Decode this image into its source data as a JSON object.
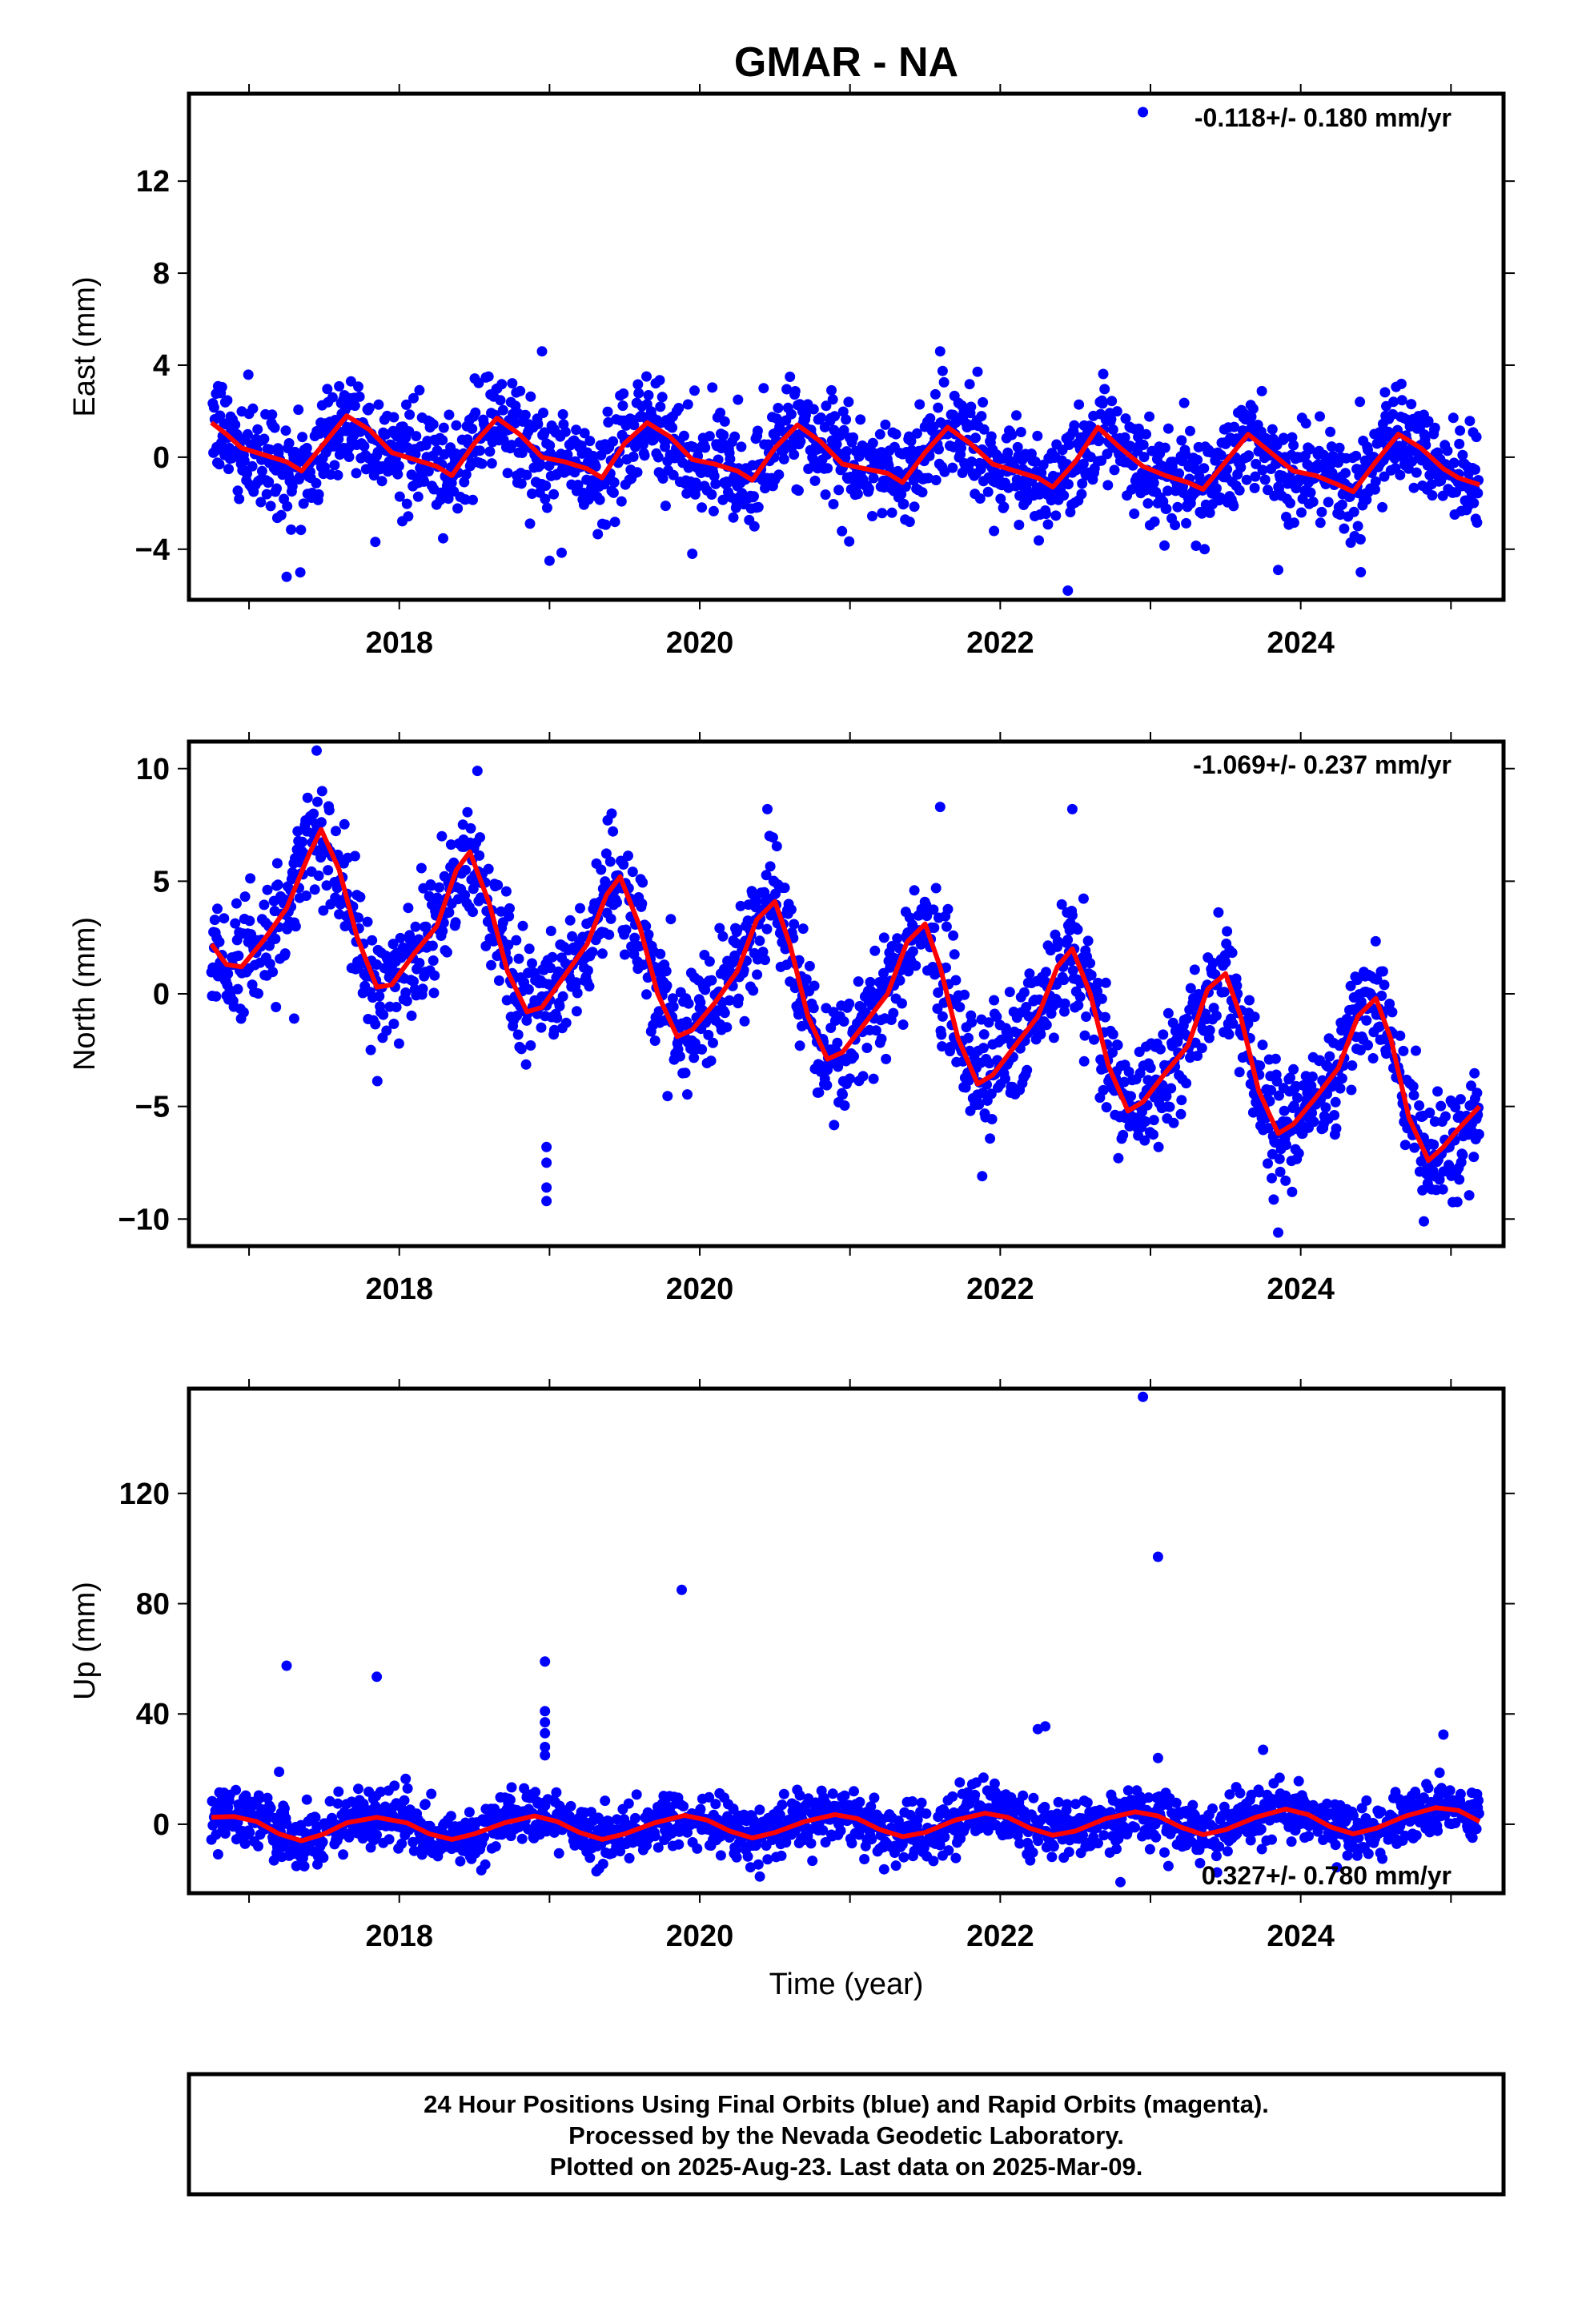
{
  "title": "GMAR - NA",
  "colors": {
    "points": "#0000ff",
    "fit": "#ff0000",
    "frame": "#000000"
  },
  "x_axis_label": "Time (year)",
  "footer": {
    "lines": [
      "24 Hour Positions Using Final Orbits (blue) and Rapid Orbits (magenta).",
      "Processed by the Nevada Geodetic Laboratory.",
      "Plotted on 2025-Aug-23. Last data on 2025-Mar-09."
    ]
  },
  "chart_data": [
    {
      "type": "scatter",
      "ylabel": "East (mm)",
      "rate_text": "-0.118+/- 0.180 mm/yr",
      "xlim": [
        2016.6,
        2025.35
      ],
      "ylim": [
        -6.2,
        15.8
      ],
      "xticks": [
        2018,
        2020,
        2022,
        2024
      ],
      "yticks": [
        -4,
        0,
        4,
        8,
        12
      ],
      "ytick_labels": [
        "−4",
        "0",
        "4",
        "8",
        "12"
      ],
      "series_model": {
        "start": 2016.75,
        "end": 2025.19,
        "trend": -0.118,
        "amp": 1.2,
        "phase": 2017.3,
        "noise": 1.1,
        "offset": 0.0
      },
      "fit_line": [
        [
          2016.75,
          1.5
        ],
        [
          2016.85,
          1.0
        ],
        [
          2016.95,
          0.4
        ],
        [
          2017.1,
          0.1
        ],
        [
          2017.25,
          -0.2
        ],
        [
          2017.35,
          -0.6
        ],
        [
          2017.5,
          0.6
        ],
        [
          2017.65,
          1.8
        ],
        [
          2017.8,
          1.2
        ],
        [
          2017.95,
          0.2
        ],
        [
          2018.1,
          -0.1
        ],
        [
          2018.25,
          -0.4
        ],
        [
          2018.35,
          -0.8
        ],
        [
          2018.5,
          0.6
        ],
        [
          2018.65,
          1.7
        ],
        [
          2018.8,
          1.0
        ],
        [
          2018.95,
          0.0
        ],
        [
          2019.1,
          -0.2
        ],
        [
          2019.25,
          -0.5
        ],
        [
          2019.35,
          -0.9
        ],
        [
          2019.5,
          0.6
        ],
        [
          2019.65,
          1.5
        ],
        [
          2019.8,
          0.9
        ],
        [
          2019.95,
          -0.1
        ],
        [
          2020.1,
          -0.3
        ],
        [
          2020.25,
          -0.6
        ],
        [
          2020.35,
          -1.0
        ],
        [
          2020.5,
          0.4
        ],
        [
          2020.65,
          1.4
        ],
        [
          2020.8,
          0.7
        ],
        [
          2020.95,
          -0.3
        ],
        [
          2021.1,
          -0.5
        ],
        [
          2021.25,
          -0.7
        ],
        [
          2021.35,
          -1.1
        ],
        [
          2021.5,
          0.2
        ],
        [
          2021.65,
          1.3
        ],
        [
          2021.8,
          0.6
        ],
        [
          2021.95,
          -0.3
        ],
        [
          2022.1,
          -0.6
        ],
        [
          2022.25,
          -0.9
        ],
        [
          2022.35,
          -1.3
        ],
        [
          2022.5,
          -0.2
        ],
        [
          2022.65,
          1.3
        ],
        [
          2022.8,
          0.4
        ],
        [
          2022.95,
          -0.4
        ],
        [
          2023.1,
          -0.8
        ],
        [
          2023.25,
          -1.1
        ],
        [
          2023.35,
          -1.4
        ],
        [
          2023.5,
          -0.2
        ],
        [
          2023.65,
          1.0
        ],
        [
          2023.8,
          0.2
        ],
        [
          2023.95,
          -0.6
        ],
        [
          2024.1,
          -0.8
        ],
        [
          2024.25,
          -1.2
        ],
        [
          2024.35,
          -1.5
        ],
        [
          2024.5,
          -0.2
        ],
        [
          2024.65,
          1.0
        ],
        [
          2024.8,
          0.4
        ],
        [
          2024.95,
          -0.5
        ],
        [
          2025.05,
          -0.9
        ],
        [
          2025.19,
          -1.2
        ]
      ],
      "outliers": [
        [
          2022.95,
          15.0
        ],
        [
          2017.25,
          -5.2
        ],
        [
          2022.45,
          -5.8
        ],
        [
          2019.0,
          -4.5
        ],
        [
          2019.95,
          -4.2
        ],
        [
          2023.85,
          -4.9
        ],
        [
          2024.4,
          -5.0
        ],
        [
          2018.95,
          4.6
        ],
        [
          2021.6,
          4.6
        ]
      ]
    },
    {
      "type": "scatter",
      "ylabel": "North (mm)",
      "rate_text": "-1.069+/- 0.237 mm/yr",
      "xlim": [
        2016.6,
        2025.35
      ],
      "ylim": [
        -11.2,
        11.2
      ],
      "xticks": [
        2018,
        2020,
        2022,
        2024
      ],
      "yticks": [
        -10,
        -5,
        0,
        5,
        10
      ],
      "ytick_labels": [
        "−10",
        "−5",
        "0",
        "5",
        "10"
      ],
      "series_model": {
        "start": 2016.75,
        "end": 2025.19,
        "trend": -1.069,
        "amp": 4.5,
        "phase": 2017.25,
        "noise": 1.3,
        "offset": 0.0
      },
      "fit_line": [
        [
          2016.75,
          2.2
        ],
        [
          2016.85,
          1.3
        ],
        [
          2016.95,
          1.2
        ],
        [
          2017.1,
          2.4
        ],
        [
          2017.25,
          3.8
        ],
        [
          2017.4,
          6.2
        ],
        [
          2017.48,
          7.3
        ],
        [
          2017.6,
          5.5
        ],
        [
          2017.72,
          2.5
        ],
        [
          2017.85,
          0.3
        ],
        [
          2017.95,
          0.4
        ],
        [
          2018.1,
          1.8
        ],
        [
          2018.25,
          3.0
        ],
        [
          2018.38,
          5.5
        ],
        [
          2018.47,
          6.3
        ],
        [
          2018.6,
          4.0
        ],
        [
          2018.72,
          1.0
        ],
        [
          2018.85,
          -0.8
        ],
        [
          2018.95,
          -0.6
        ],
        [
          2019.1,
          0.8
        ],
        [
          2019.25,
          2.2
        ],
        [
          2019.38,
          4.4
        ],
        [
          2019.47,
          5.2
        ],
        [
          2019.6,
          3.0
        ],
        [
          2019.72,
          0.0
        ],
        [
          2019.85,
          -1.9
        ],
        [
          2019.95,
          -1.6
        ],
        [
          2020.1,
          -0.4
        ],
        [
          2020.25,
          1.0
        ],
        [
          2020.38,
          3.3
        ],
        [
          2020.5,
          4.1
        ],
        [
          2020.6,
          2.2
        ],
        [
          2020.72,
          -1.0
        ],
        [
          2020.85,
          -2.9
        ],
        [
          2020.95,
          -2.6
        ],
        [
          2021.1,
          -1.3
        ],
        [
          2021.25,
          0.0
        ],
        [
          2021.38,
          2.3
        ],
        [
          2021.5,
          3.1
        ],
        [
          2021.6,
          1.2
        ],
        [
          2021.72,
          -2.0
        ],
        [
          2021.85,
          -4.0
        ],
        [
          2021.95,
          -3.6
        ],
        [
          2022.1,
          -2.3
        ],
        [
          2022.25,
          -1.0
        ],
        [
          2022.38,
          1.2
        ],
        [
          2022.48,
          2.0
        ],
        [
          2022.6,
          0.0
        ],
        [
          2022.72,
          -3.2
        ],
        [
          2022.85,
          -5.2
        ],
        [
          2022.95,
          -4.8
        ],
        [
          2023.1,
          -3.5
        ],
        [
          2023.25,
          -2.3
        ],
        [
          2023.38,
          0.2
        ],
        [
          2023.5,
          0.9
        ],
        [
          2023.6,
          -1.0
        ],
        [
          2023.72,
          -4.3
        ],
        [
          2023.85,
          -6.2
        ],
        [
          2023.95,
          -5.8
        ],
        [
          2024.1,
          -4.6
        ],
        [
          2024.25,
          -3.3
        ],
        [
          2024.38,
          -1.0
        ],
        [
          2024.5,
          -0.2
        ],
        [
          2024.6,
          -2.0
        ],
        [
          2024.72,
          -5.5
        ],
        [
          2024.85,
          -7.4
        ],
        [
          2024.95,
          -6.8
        ],
        [
          2025.05,
          -6.0
        ],
        [
          2025.19,
          -5.0
        ]
      ],
      "outliers": [
        [
          2017.45,
          10.8
        ],
        [
          2018.52,
          9.9
        ],
        [
          2020.45,
          8.2
        ],
        [
          2021.6,
          8.3
        ],
        [
          2022.48,
          8.2
        ],
        [
          2018.98,
          -6.8
        ],
        [
          2018.98,
          -7.5
        ],
        [
          2018.98,
          -8.6
        ],
        [
          2018.98,
          -9.2
        ],
        [
          2023.85,
          -10.6
        ],
        [
          2024.82,
          -10.1
        ],
        [
          2017.3,
          -1.1
        ]
      ]
    },
    {
      "type": "scatter",
      "ylabel": "Up (mm)",
      "rate_text": "0.327+/- 0.780 mm/yr",
      "xlim": [
        2016.6,
        2025.35
      ],
      "ylim": [
        -25,
        158
      ],
      "xticks": [
        2018,
        2020,
        2022,
        2024
      ],
      "yticks": [
        0,
        40,
        80,
        120
      ],
      "ytick_labels": [
        "0",
        "40",
        "80",
        "120"
      ],
      "series_model": {
        "start": 2016.75,
        "end": 2025.19,
        "trend": 0.327,
        "amp": 4.5,
        "phase": 2017.85,
        "noise": 5.0,
        "offset": 0.0
      },
      "fit_line": [
        [
          2016.75,
          2.5
        ],
        [
          2016.9,
          2.8
        ],
        [
          2017.05,
          1.0
        ],
        [
          2017.2,
          -3.5
        ],
        [
          2017.35,
          -6.0
        ],
        [
          2017.5,
          -3.5
        ],
        [
          2017.65,
          0.5
        ],
        [
          2017.85,
          2.5
        ],
        [
          2018.05,
          0.5
        ],
        [
          2018.2,
          -3.5
        ],
        [
          2018.35,
          -5.5
        ],
        [
          2018.5,
          -3.5
        ],
        [
          2018.7,
          0.5
        ],
        [
          2018.9,
          3.0
        ],
        [
          2019.05,
          1.0
        ],
        [
          2019.2,
          -3.0
        ],
        [
          2019.35,
          -5.5
        ],
        [
          2019.5,
          -3.5
        ],
        [
          2019.7,
          0.5
        ],
        [
          2019.9,
          3.2
        ],
        [
          2020.05,
          1.5
        ],
        [
          2020.2,
          -2.5
        ],
        [
          2020.35,
          -5.0
        ],
        [
          2020.5,
          -3.0
        ],
        [
          2020.7,
          1.0
        ],
        [
          2020.9,
          3.5
        ],
        [
          2021.05,
          2.0
        ],
        [
          2021.2,
          -2.0
        ],
        [
          2021.35,
          -4.5
        ],
        [
          2021.5,
          -3.0
        ],
        [
          2021.7,
          1.5
        ],
        [
          2021.9,
          4.0
        ],
        [
          2022.05,
          2.5
        ],
        [
          2022.2,
          -1.5
        ],
        [
          2022.35,
          -4.0
        ],
        [
          2022.5,
          -2.5
        ],
        [
          2022.7,
          2.0
        ],
        [
          2022.9,
          4.5
        ],
        [
          2023.05,
          3.0
        ],
        [
          2023.2,
          -1.0
        ],
        [
          2023.35,
          -3.8
        ],
        [
          2023.5,
          -2.0
        ],
        [
          2023.7,
          2.5
        ],
        [
          2023.9,
          5.5
        ],
        [
          2024.05,
          3.5
        ],
        [
          2024.2,
          -1.0
        ],
        [
          2024.35,
          -3.5
        ],
        [
          2024.5,
          -1.5
        ],
        [
          2024.7,
          3.0
        ],
        [
          2024.9,
          6.0
        ],
        [
          2025.05,
          5.0
        ],
        [
          2025.19,
          1.0
        ]
      ],
      "outliers": [
        [
          2022.95,
          155.0
        ],
        [
          2023.05,
          97.0
        ],
        [
          2019.88,
          85.0
        ],
        [
          2018.97,
          59.0
        ],
        [
          2017.25,
          57.5
        ],
        [
          2017.85,
          53.5
        ],
        [
          2018.97,
          41.0
        ],
        [
          2018.97,
          37.0
        ],
        [
          2018.97,
          33.0
        ],
        [
          2018.97,
          28.0
        ],
        [
          2018.97,
          25.0
        ],
        [
          2022.25,
          34.5
        ],
        [
          2022.3,
          35.5
        ],
        [
          2023.05,
          24.0
        ],
        [
          2023.75,
          27.0
        ],
        [
          2024.95,
          32.5
        ],
        [
          2017.2,
          19.0
        ],
        [
          2022.8,
          -21.0
        ],
        [
          2020.4,
          -19.0
        ]
      ]
    }
  ]
}
